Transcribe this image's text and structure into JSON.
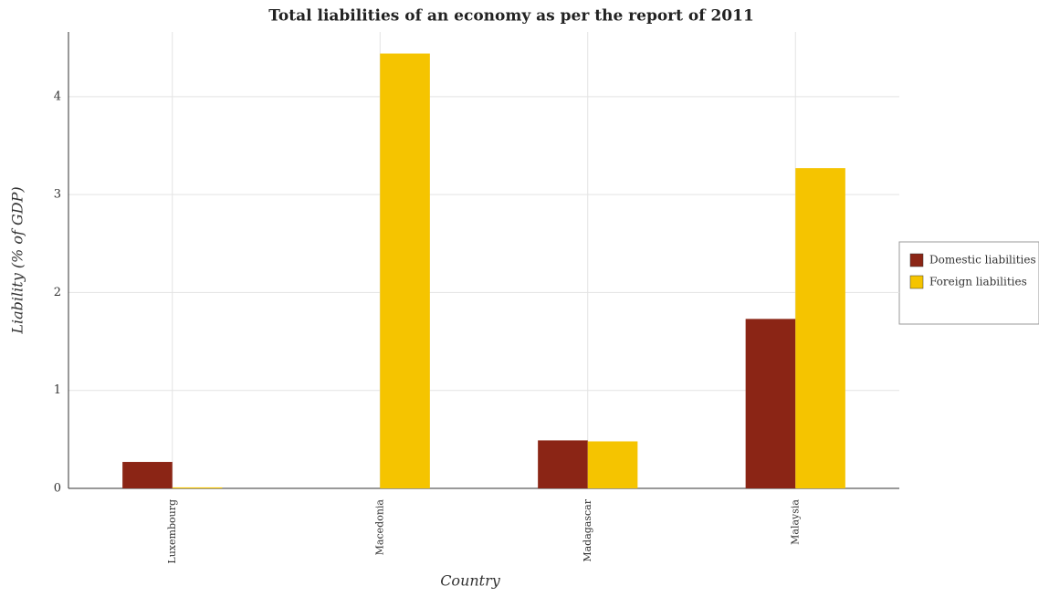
{
  "chart_data": {
    "type": "bar",
    "title": "Total liabilities of an economy as per the report of 2011",
    "x_label": "Country",
    "y_label": "Liability (% of GDP)",
    "categories": [
      "Luxembourg",
      "Macedonia",
      "Madagascar",
      "Malaysia"
    ],
    "series": [
      {
        "name": "Domestic liabilities",
        "color": "#8b2515",
        "values": [
          0.27,
          0,
          0.49,
          1.73
        ]
      },
      {
        "name": "Foreign liabilities",
        "color": "#f5c400",
        "values": [
          0.01,
          4.44,
          0.48,
          3.27
        ]
      }
    ],
    "ylim": [
      0,
      4.66
    ],
    "yticks": [
      0,
      1,
      2,
      3,
      4
    ],
    "grid": true,
    "legend": "right"
  }
}
